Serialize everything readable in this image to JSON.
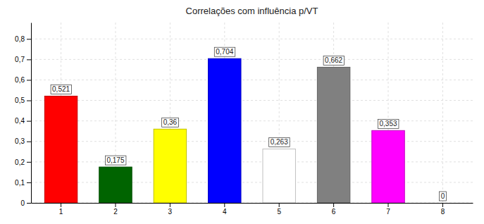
{
  "chart_data": {
    "type": "bar",
    "title": "Correlações com influência p/VT",
    "categories": [
      "1",
      "2",
      "3",
      "4",
      "5",
      "6",
      "7",
      "8"
    ],
    "values": [
      0.521,
      0.175,
      0.36,
      0.704,
      0.263,
      0.662,
      0.353,
      0
    ],
    "value_labels": [
      "0,521",
      "0,175",
      "0,36",
      "0,704",
      "0,263",
      "0,662",
      "0,353",
      "0"
    ],
    "colors": [
      "#ff0000",
      "#006400",
      "#ffff00",
      "#0000ff",
      "#ffffff",
      "#808080",
      "#ff00ff",
      "#ffffff"
    ],
    "ylim": [
      0,
      0.88
    ],
    "yticks": [
      0,
      {
        "value": 0.1,
        "label": "0,1"
      },
      {
        "value": 0.2,
        "label": "0,2"
      },
      {
        "value": 0.3,
        "label": "0,3"
      },
      {
        "value": 0.4,
        "label": "0,4"
      },
      {
        "value": 0.5,
        "label": "0,5"
      },
      {
        "value": 0.6,
        "label": "0,6"
      },
      {
        "value": 0.7,
        "label": "0,7"
      },
      {
        "value": 0.8,
        "label": "0,8"
      }
    ],
    "grid": true,
    "data_labels": true
  }
}
